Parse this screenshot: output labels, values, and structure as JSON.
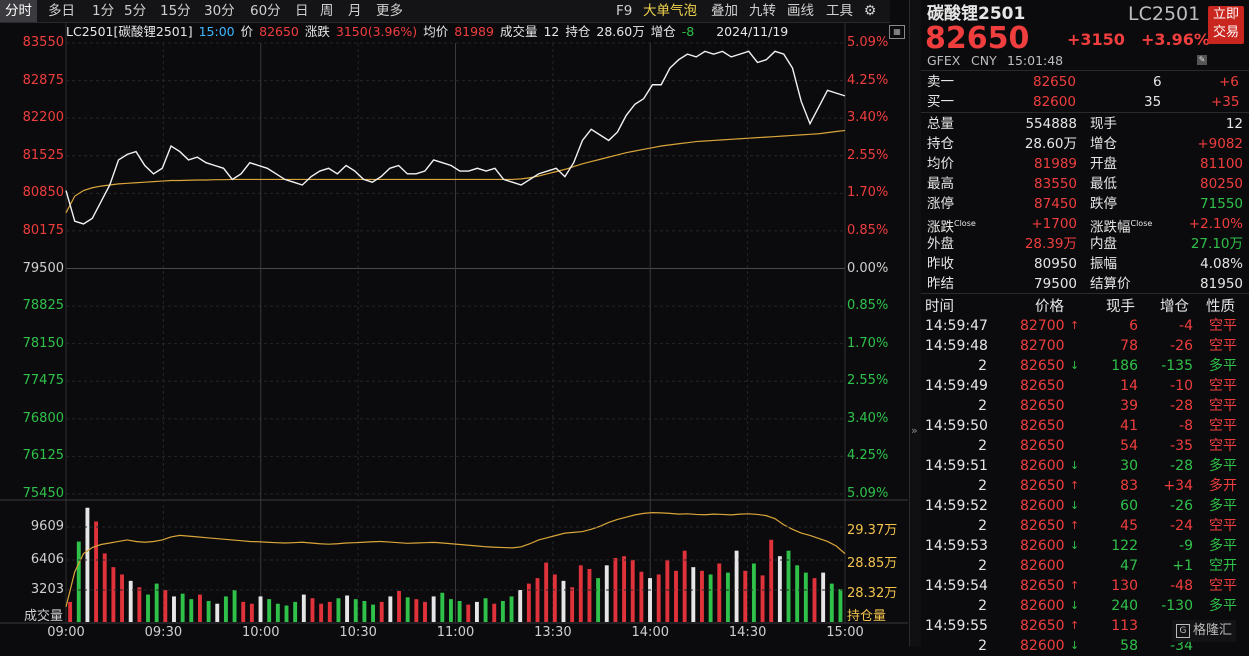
{
  "toolbar": {
    "items": [
      "分时",
      "多日",
      "1分",
      "5分",
      "15分",
      "30分",
      "60分",
      "日",
      "周",
      "月",
      "更多"
    ],
    "right_items": [
      "F9",
      "大单气泡",
      "叠加",
      "九转",
      "画线",
      "工具"
    ],
    "settings_icon": "gear-icon",
    "chart_corner_icon": "chart-export-icon"
  },
  "infobar": {
    "code": "LC2501[碳酸锂2501]",
    "time": "15:00",
    "price_label": "价",
    "price": "82650",
    "change_label": "涨跌",
    "change": "3150(3.96%)",
    "avg_label": "均价",
    "avg": "81989",
    "vol_label": "成交量",
    "vol": "12",
    "oi_label": "持仓",
    "oi": "28.60万",
    "oi_chg_label": "增仓",
    "oi_chg": "-8",
    "date": "2024/11/19"
  },
  "chart_data": [
    {
      "type": "line",
      "y_left_ticks": [
        "83550",
        "82875",
        "82200",
        "81525",
        "80850",
        "80175",
        "79500",
        "78825",
        "78150",
        "77475",
        "76800",
        "76125",
        "75450"
      ],
      "y_right_ticks": [
        "5.09%",
        "4.25%",
        "3.40%",
        "2.55%",
        "1.70%",
        "0.85%",
        "0.00%",
        "0.85%",
        "1.70%",
        "2.55%",
        "3.40%",
        "4.25%",
        "5.09%"
      ],
      "ylim": [
        75450,
        83550
      ],
      "reference": 79500,
      "x_ticks": [
        "09:00",
        "09:30",
        "10:00",
        "10:30",
        "11:00",
        "13:30",
        "14:00",
        "14:30",
        "15:00"
      ],
      "series": [
        {
          "values": [
            80900,
            80350,
            80300,
            80400,
            80700,
            81000,
            81450,
            81550,
            81600,
            81350,
            81200,
            81300,
            81700,
            81600,
            81450,
            81500,
            81400,
            81350,
            81300,
            81100,
            81200,
            81400,
            81350,
            81300,
            81200,
            81100,
            81050,
            81000,
            81150,
            81250,
            81300,
            81200,
            81350,
            81250,
            81100,
            81050,
            81150,
            81300,
            81350,
            81200,
            81200,
            81250,
            81450,
            81400,
            81350,
            81250,
            81250,
            81300,
            81250,
            81300,
            81100,
            81050,
            81000,
            81100,
            81200,
            81250,
            81300,
            81150,
            81400,
            81800,
            82000,
            81900,
            81800,
            81950,
            82250,
            82450,
            82550,
            82800,
            82800,
            83100,
            83250,
            83350,
            83300,
            83400,
            83350,
            83400,
            83300,
            83350,
            83400,
            83200,
            83250,
            83400,
            83350,
            83100,
            82500,
            82100,
            82400,
            82700,
            82650,
            82600
          ]
        },
        {
          "values": [
            80500,
            80800,
            80900,
            80950,
            80980,
            81000,
            81020,
            81030,
            81040,
            81050,
            81060,
            81070,
            81080,
            81080,
            81085,
            81090,
            81090,
            81095,
            81095,
            81100,
            81100,
            81100,
            81100,
            81100,
            81100,
            81100,
            81100,
            81100,
            81100,
            81100,
            81100,
            81100,
            81100,
            81100,
            81100,
            81100,
            81100,
            81100,
            81100,
            81100,
            81100,
            81100,
            81100,
            81100,
            81100,
            81100,
            81100,
            81100,
            81100,
            81100,
            81100,
            81100,
            81110,
            81130,
            81160,
            81200,
            81240,
            81280,
            81330,
            81380,
            81420,
            81460,
            81500,
            81540,
            81580,
            81610,
            81640,
            81670,
            81700,
            81720,
            81740,
            81760,
            81780,
            81790,
            81800,
            81810,
            81820,
            81830,
            81840,
            81850,
            81860,
            81870,
            81880,
            81890,
            81900,
            81910,
            81920,
            81940,
            81960,
            81980
          ]
        }
      ]
    },
    {
      "type": "bar",
      "y_left_ticks": [
        "9609",
        "6406",
        "3203"
      ],
      "y_right_ticks": [
        "29.37万",
        "28.85万",
        "28.32万"
      ],
      "ylabel": "成交量",
      "y2label": "持仓量",
      "ylim": [
        0,
        12800
      ],
      "series": [
        {
          "values": [
            2200,
            8800,
            12500,
            11000,
            7500,
            6000,
            5200,
            4500,
            3800,
            3000,
            4200,
            3500,
            2800,
            3100,
            2500,
            3000,
            2300,
            2000,
            2800,
            3500,
            2200,
            2000,
            2800,
            2500,
            2000,
            1800,
            2200,
            3000,
            2600,
            2000,
            2200,
            2600,
            2900,
            2500,
            2300,
            1900,
            2200,
            2800,
            3400,
            2700,
            2500,
            2200,
            2800,
            3200,
            2500,
            2300,
            1900,
            2200,
            2600,
            2000,
            2300,
            2800,
            3500,
            4200,
            4800,
            6500,
            5200,
            4500,
            3800,
            6200,
            5800,
            4800,
            6200,
            7000,
            7200,
            6800,
            5500,
            4800,
            5200,
            6800,
            5600,
            7800,
            6000,
            5600,
            5200,
            6400,
            5400,
            7800,
            5600,
            6400,
            5100,
            9000,
            7200,
            7800,
            6200,
            5400,
            4800,
            5400,
            4200,
            3600
          ]
        },
        {
          "values": [
            284500,
            286800,
            288000,
            288400,
            288600,
            288700,
            288800,
            288900,
            288800,
            288750,
            288800,
            288900,
            289100,
            289200,
            289150,
            289100,
            289050,
            289000,
            288950,
            288900,
            288850,
            288800,
            288780,
            288750,
            288720,
            288700,
            288720,
            288750,
            288700,
            288650,
            288620,
            288650,
            288700,
            288720,
            288750,
            288780,
            288800,
            288760,
            288720,
            288680,
            288700,
            288720,
            288740,
            288700,
            288650,
            288600,
            288550,
            288500,
            288450,
            288420,
            288400,
            288380,
            288450,
            288650,
            288900,
            289050,
            289200,
            289350,
            289400,
            289450,
            289600,
            289800,
            290050,
            290250,
            290400,
            290550,
            290650,
            290700,
            290680,
            290650,
            290600,
            290620,
            290580,
            290560,
            290600,
            290580,
            290550,
            290600,
            290620,
            290580,
            290500,
            290300,
            289900,
            289600,
            289350,
            289200,
            289000,
            288800,
            288500,
            288000
          ]
        }
      ]
    }
  ],
  "panel": {
    "name": "碳酸锂2501",
    "code": "LC2501",
    "buy_btn_line1": "立即",
    "buy_btn_line2": "交易",
    "price": "82650",
    "change": "+3150",
    "pct": "+3.96%",
    "exchange": "GFEX",
    "currency": "CNY",
    "time": "15:01:48",
    "edit_icon": "pencil-icon",
    "ask_label": "卖一",
    "ask_price": "82650",
    "ask_vol": "6",
    "ask_chg": "+6",
    "bid_label": "买一",
    "bid_price": "82600",
    "bid_vol": "35",
    "bid_chg": "+35",
    "stats": [
      {
        "l1": "总量",
        "v1": "554888",
        "c1": "white",
        "l2": "现手",
        "v2": "12",
        "c2": "white"
      },
      {
        "l1": "持仓",
        "v1": "28.60万",
        "c1": "white",
        "l2": "增仓",
        "v2": "+9082",
        "c2": "red"
      },
      {
        "l1": "均价",
        "v1": "81989",
        "c1": "red",
        "l2": "开盘",
        "v2": "81100",
        "c2": "red"
      },
      {
        "l1": "最高",
        "v1": "83550",
        "c1": "red",
        "l2": "最低",
        "v2": "80250",
        "c2": "red"
      },
      {
        "l1": "涨停",
        "v1": "87450",
        "c1": "red",
        "l2": "跌停",
        "v2": "71550",
        "c2": "green"
      },
      {
        "l1": "涨跌",
        "s1": "Close",
        "v1": "+1700",
        "c1": "red",
        "l2": "涨跌幅",
        "s2": "Close",
        "v2": "+2.10%",
        "c2": "red"
      },
      {
        "l1": "外盘",
        "v1": "28.39万",
        "c1": "red",
        "l2": "内盘",
        "v2": "27.10万",
        "c2": "green"
      },
      {
        "l1": "昨收",
        "v1": "80950",
        "c1": "white",
        "l2": "振幅",
        "v2": "4.08%",
        "c2": "white"
      },
      {
        "l1": "昨结",
        "v1": "79500",
        "c1": "white",
        "l2": "结算价",
        "v2": "81950",
        "c2": "white"
      }
    ],
    "ticks_header": [
      "时间",
      "价格",
      "现手",
      "增仓",
      "性质"
    ],
    "ticks": [
      {
        "t": "14:59:47",
        "p": "82700",
        "d": "up",
        "v": "6",
        "vc": "red",
        "o": "-4",
        "n": "空平",
        "nc": "red"
      },
      {
        "t": "14:59:48",
        "p": "82700",
        "d": "",
        "v": "78",
        "vc": "red",
        "o": "-26",
        "n": "空平",
        "nc": "red"
      },
      {
        "t": "2",
        "p": "82650",
        "d": "down",
        "v": "186",
        "vc": "green",
        "o": "-135",
        "n": "多平",
        "nc": "green"
      },
      {
        "t": "14:59:49",
        "p": "82650",
        "d": "",
        "v": "14",
        "vc": "red",
        "o": "-10",
        "n": "空平",
        "nc": "red"
      },
      {
        "t": "2",
        "p": "82650",
        "d": "",
        "v": "39",
        "vc": "red",
        "o": "-28",
        "n": "空平",
        "nc": "red"
      },
      {
        "t": "14:59:50",
        "p": "82650",
        "d": "",
        "v": "41",
        "vc": "red",
        "o": "-8",
        "n": "空平",
        "nc": "red"
      },
      {
        "t": "2",
        "p": "82650",
        "d": "",
        "v": "54",
        "vc": "red",
        "o": "-35",
        "n": "空平",
        "nc": "red"
      },
      {
        "t": "14:59:51",
        "p": "82600",
        "d": "down",
        "v": "30",
        "vc": "green",
        "o": "-28",
        "n": "多平",
        "nc": "green"
      },
      {
        "t": "2",
        "p": "82650",
        "d": "up",
        "v": "83",
        "vc": "red",
        "o": "+34",
        "n": "多开",
        "nc": "red"
      },
      {
        "t": "14:59:52",
        "p": "82600",
        "d": "down",
        "v": "60",
        "vc": "green",
        "o": "-26",
        "n": "多平",
        "nc": "green"
      },
      {
        "t": "2",
        "p": "82650",
        "d": "up",
        "v": "45",
        "vc": "red",
        "o": "-24",
        "n": "空平",
        "nc": "red"
      },
      {
        "t": "14:59:53",
        "p": "82600",
        "d": "down",
        "v": "122",
        "vc": "green",
        "o": "-9",
        "n": "多平",
        "nc": "green"
      },
      {
        "t": "2",
        "p": "82600",
        "d": "",
        "v": "47",
        "vc": "green",
        "o": "+1",
        "n": "空开",
        "nc": "green"
      },
      {
        "t": "14:59:54",
        "p": "82650",
        "d": "up",
        "v": "130",
        "vc": "red",
        "o": "-48",
        "n": "空平",
        "nc": "red"
      },
      {
        "t": "2",
        "p": "82600",
        "d": "down",
        "v": "240",
        "vc": "green",
        "o": "-130",
        "n": "多平",
        "nc": "green"
      },
      {
        "t": "14:59:55",
        "p": "82650",
        "d": "up",
        "v": "113",
        "vc": "red",
        "o": "-",
        "n": "",
        "nc": "red"
      },
      {
        "t": "2",
        "p": "82600",
        "d": "down",
        "v": "58",
        "vc": "green",
        "o": "-34",
        "n": "",
        "nc": "green"
      }
    ],
    "collapse_icon": "double-chevron-right-icon",
    "watermark": "格隆汇"
  }
}
